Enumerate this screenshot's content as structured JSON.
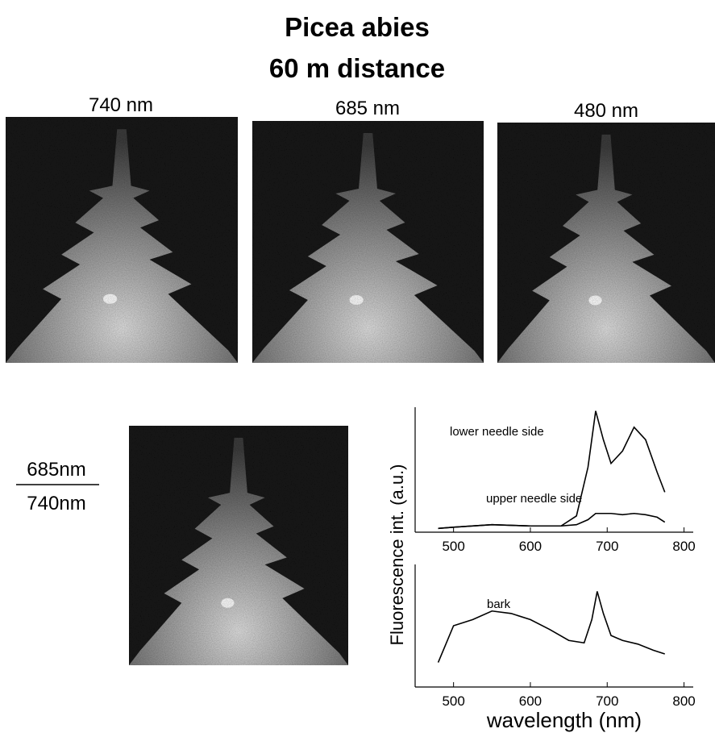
{
  "title_lines": [
    "Picea abies",
    "60 m distance"
  ],
  "image_labels": [
    "740 nm",
    "685 nm",
    "480 nm"
  ],
  "ratio_label": {
    "numerator": "685nm",
    "denominator": "740nm"
  },
  "chart_data": [
    {
      "type": "line",
      "ylabel": "Fluorescence int. (a.u.)",
      "x": [
        480,
        500,
        550,
        600,
        640,
        660,
        675,
        685,
        695,
        705,
        720,
        735,
        750,
        765,
        775
      ],
      "series": [
        {
          "name": "lower needle side",
          "color": "#000000",
          "values": [
            0.03,
            0.04,
            0.06,
            0.05,
            0.05,
            0.13,
            0.52,
            0.97,
            0.74,
            0.55,
            0.65,
            0.84,
            0.74,
            0.48,
            0.32
          ]
        },
        {
          "name": "upper needle side",
          "color": "#000000",
          "values": [
            0.03,
            0.04,
            0.06,
            0.05,
            0.05,
            0.06,
            0.1,
            0.15,
            0.15,
            0.15,
            0.14,
            0.15,
            0.14,
            0.12,
            0.08
          ]
        }
      ],
      "xlim": [
        450,
        812
      ],
      "ylim": [
        0,
        1
      ],
      "xticks": [
        500,
        600,
        700,
        800
      ]
    },
    {
      "type": "line",
      "xlabel": "wavelength (nm)",
      "x": [
        480,
        490,
        500,
        525,
        550,
        575,
        600,
        625,
        650,
        670,
        680,
        687,
        695,
        705,
        720,
        740,
        760,
        775
      ],
      "series": [
        {
          "name": "bark",
          "color": "#000000",
          "values": [
            0.2,
            0.35,
            0.5,
            0.55,
            0.62,
            0.6,
            0.55,
            0.47,
            0.38,
            0.36,
            0.55,
            0.78,
            0.6,
            0.42,
            0.38,
            0.35,
            0.3,
            0.27
          ]
        }
      ],
      "xlim": [
        450,
        812
      ],
      "ylim": [
        0,
        1
      ],
      "xticks": [
        500,
        600,
        700,
        800
      ]
    }
  ]
}
